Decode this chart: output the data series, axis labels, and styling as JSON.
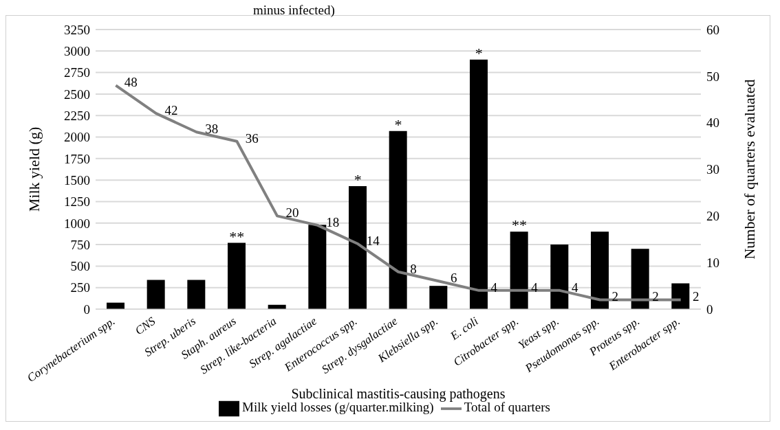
{
  "chart_data": {
    "type": "bar",
    "title": "minus infected)",
    "xlabel": "Subclinical mastitis-causing pathogens",
    "ylabel": "Milk yield (g)",
    "y2label": "Number of quarters evaluated",
    "categories": [
      "Corynebacterium spp.",
      "CNS",
      "Strep. uberis",
      "Staph. aureus",
      "Strep. like-bacteria",
      "Strep. agalactiae",
      "Enterococcus spp.",
      "Strep. dysgalactiae",
      "Klebsiella spp.",
      "E. coli",
      "Citrobacter spp.",
      "Yeast spp.",
      "Pseudomonas spp.",
      "Proteus spp.",
      "Enterobacter spp."
    ],
    "series": [
      {
        "name": "Milk yield losses (g/quarter.milking)",
        "color": "#000000",
        "values": [
          75,
          340,
          340,
          770,
          50,
          980,
          1430,
          2070,
          270,
          2900,
          900,
          750,
          900,
          700,
          300
        ]
      },
      {
        "name": "Total of quarters",
        "type": "line",
        "axis": "y2",
        "color": "#808080",
        "values": [
          48,
          42,
          38,
          36,
          20,
          18,
          14,
          8,
          6,
          4,
          4,
          4,
          2,
          2,
          2
        ],
        "value_labels": [
          "48",
          "42",
          "38",
          "36",
          "20",
          "18",
          "14",
          "8",
          "6",
          "4",
          "4",
          "4",
          "2",
          "2",
          "2"
        ]
      }
    ],
    "ylim": [
      0,
      3250
    ],
    "yticks": [
      0,
      250,
      500,
      750,
      1000,
      1250,
      1500,
      1750,
      2000,
      2250,
      2500,
      2750,
      3000,
      3250
    ],
    "y2lim": [
      0,
      60
    ],
    "y2ticks": [
      0,
      10,
      20,
      30,
      40,
      50,
      60
    ],
    "grid": "y",
    "legend": "bottom",
    "marker": "none",
    "line_style": "solid",
    "annotations": [
      {
        "text": "**",
        "x": "Staph. aureus",
        "y": 770
      },
      {
        "text": "*",
        "x": "Enterococcus spp.",
        "y": 1430
      },
      {
        "text": "*",
        "x": "Strep. dysgalactiae",
        "y": 2070
      },
      {
        "text": "*",
        "x": "E. coli",
        "y": 2900
      },
      {
        "text": "**",
        "x": "Citrobacter spp.",
        "y": 900
      }
    ]
  }
}
